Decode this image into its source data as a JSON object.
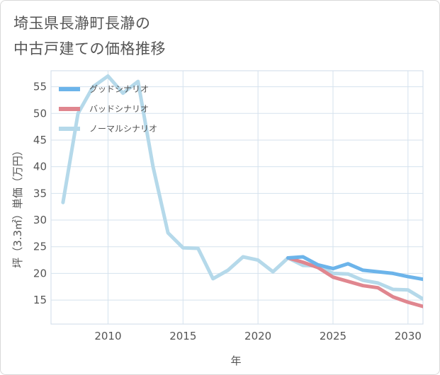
{
  "title": {
    "line1": "埼玉県長瀞町長瀞の",
    "line2": "中古戸建ての価格推移"
  },
  "chart_data": {
    "type": "line",
    "xlabel": "年",
    "ylabel": "坪（3.3㎡）単価（万円）",
    "xlim": [
      2006.2,
      2031
    ],
    "ylim": [
      10.5,
      58
    ],
    "x_ticks": [
      2010,
      2015,
      2020,
      2025,
      2030
    ],
    "y_ticks": [
      15,
      20,
      25,
      30,
      35,
      40,
      45,
      50,
      55
    ],
    "grid": true,
    "legend_position": "top-left",
    "series": [
      {
        "name": "グッドシナリオ",
        "color": "#6cb4ea",
        "x": [
          2022,
          2023,
          2024,
          2025,
          2026,
          2027,
          2028,
          2029,
          2030,
          2031
        ],
        "values": [
          22.9,
          23.1,
          21.6,
          20.9,
          21.8,
          20.6,
          20.3,
          20.0,
          19.4,
          18.9
        ]
      },
      {
        "name": "バッドシナリオ",
        "color": "#e0868f",
        "x": [
          2022,
          2023,
          2024,
          2025,
          2026,
          2027,
          2028,
          2029,
          2030,
          2031
        ],
        "values": [
          22.9,
          22.1,
          21.1,
          19.3,
          18.5,
          17.7,
          17.3,
          15.6,
          14.6,
          13.8
        ]
      },
      {
        "name": "ノーマルシナリオ",
        "color": "#b5d9ea",
        "x": [
          2007,
          2008,
          2009,
          2010,
          2011,
          2012,
          2013,
          2014,
          2015,
          2016,
          2017,
          2018,
          2019,
          2020,
          2021,
          2022,
          2023,
          2024,
          2025,
          2026,
          2027,
          2028,
          2029,
          2030,
          2031
        ],
        "values": [
          33.3,
          50.0,
          55.0,
          57.0,
          53.8,
          56.0,
          40.0,
          27.6,
          24.8,
          24.7,
          19.0,
          20.6,
          23.1,
          22.5,
          20.3,
          22.9,
          21.5,
          21.4,
          20.0,
          19.9,
          18.7,
          18.2,
          17.0,
          16.9,
          15.2
        ]
      }
    ]
  }
}
